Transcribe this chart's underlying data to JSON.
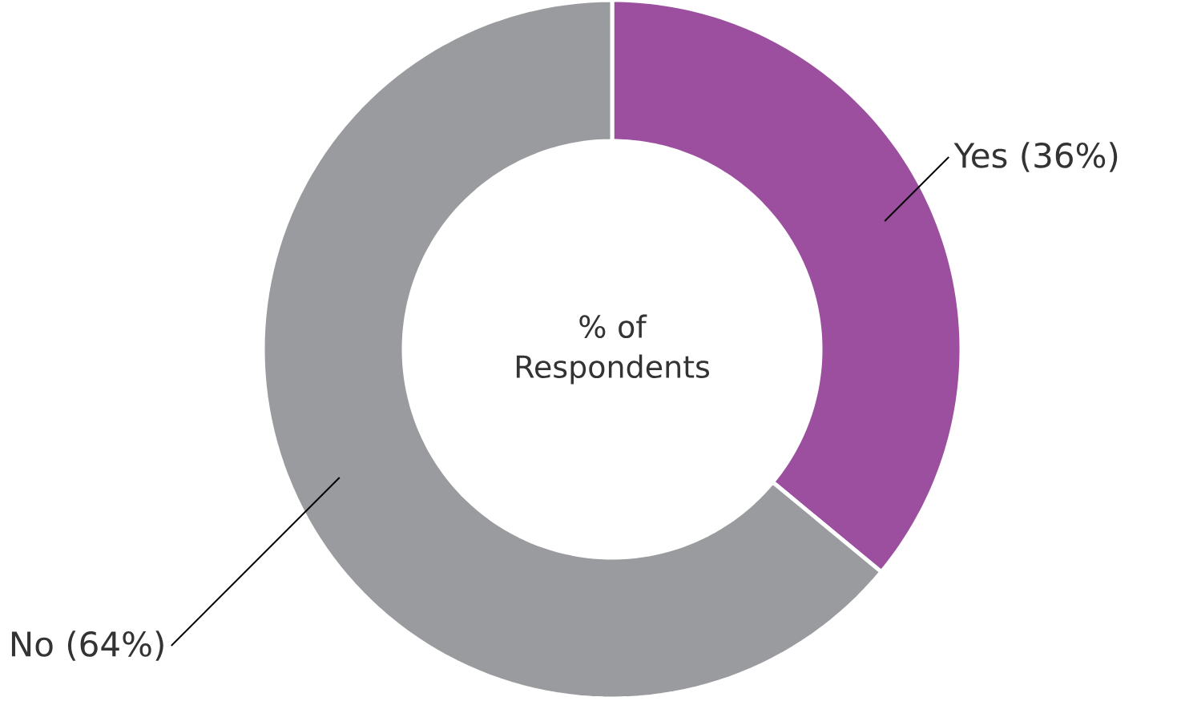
{
  "chart_data": {
    "type": "donut",
    "categories": [
      "Yes",
      "No"
    ],
    "values": [
      36,
      64
    ],
    "value_labels": [
      "(36%)",
      "(64%)"
    ],
    "colors": [
      "#9b4f9e",
      "#9a9b9e"
    ],
    "annotations": [
      "% of Respondents"
    ]
  }
}
